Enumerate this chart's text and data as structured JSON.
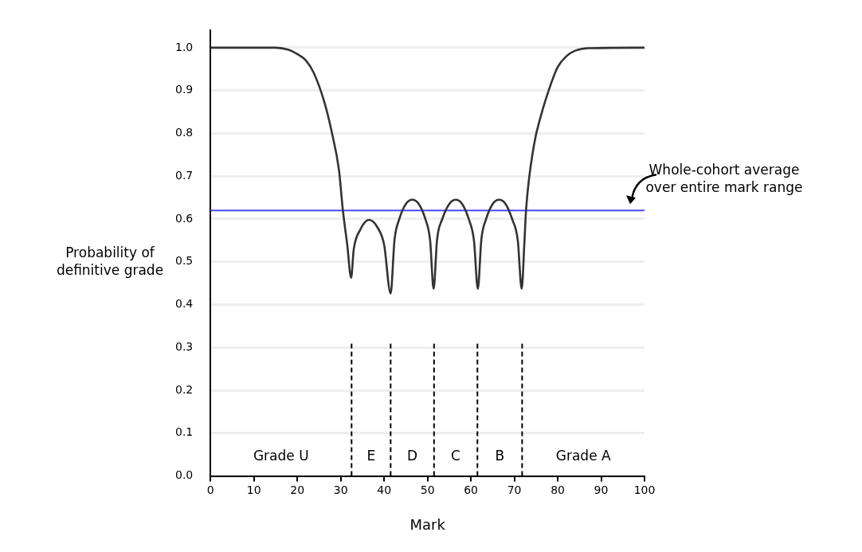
{
  "chart_data": {
    "type": "line",
    "xlabel": "Mark",
    "ylabel": "Probability of\ndefinitive grade",
    "xlim": [
      0,
      100
    ],
    "xticks": [
      0,
      10,
      20,
      30,
      40,
      50,
      60,
      70,
      80,
      90,
      100
    ],
    "ylim": [
      0,
      1.04
    ],
    "yticks": [
      {
        "value": 0,
        "label": "0.0"
      },
      {
        "value": 0.1,
        "label": "0.1"
      },
      {
        "value": 0.2,
        "label": "0.2"
      },
      {
        "value": 0.3,
        "label": "0.3"
      },
      {
        "value": 0.4,
        "label": "0.4"
      },
      {
        "value": 0.5,
        "label": "0.5"
      },
      {
        "value": 0.6,
        "label": "0.6"
      },
      {
        "value": 0.7,
        "label": "0.7"
      },
      {
        "value": 0.8,
        "label": "0.8"
      },
      {
        "value": 0.9,
        "label": "0.9"
      },
      {
        "value": 1,
        "label": "1.0"
      }
    ],
    "grid": "y",
    "legend": false,
    "marker": "none",
    "line_style": "solid",
    "series": [
      {
        "color": "#333333",
        "x": [
          0,
          10,
          15,
          18,
          20,
          22,
          23.7,
          26.2,
          28,
          29.6,
          30.5,
          31.5,
          32.4,
          33,
          34.5,
          36.5,
          38.5,
          40,
          41.5,
          42.4,
          43.5,
          45,
          46.5,
          48,
          49.5,
          50.6,
          51.4,
          52.2,
          53.4,
          55,
          56.5,
          58,
          59.5,
          60.7,
          61.6,
          62.4,
          63.5,
          65,
          66.5,
          68,
          69.5,
          70.8,
          71.7,
          72.3,
          72.7,
          74.5,
          76.1,
          78.6,
          80,
          82,
          84,
          87,
          100
        ],
        "values": [
          1,
          1,
          1,
          0.995,
          0.985,
          0.97,
          0.943,
          0.874,
          0.8,
          0.714,
          0.62,
          0.54,
          0.463,
          0.529,
          0.575,
          0.598,
          0.58,
          0.54,
          0.426,
          0.552,
          0.6,
          0.635,
          0.645,
          0.635,
          0.6,
          0.55,
          0.437,
          0.552,
          0.6,
          0.635,
          0.645,
          0.635,
          0.6,
          0.55,
          0.437,
          0.552,
          0.6,
          0.635,
          0.645,
          0.635,
          0.6,
          0.55,
          0.437,
          0.54,
          0.62,
          0.771,
          0.84,
          0.92,
          0.955,
          0.98,
          0.993,
          0.999,
          1
        ]
      }
    ],
    "ref_lines": [
      {
        "axis": "y",
        "value": 0.62,
        "label": "Whole-cohort average over entire mark range",
        "color": "#4a4aff",
        "line_style": "solid"
      },
      {
        "axis": "x",
        "value": 32.5,
        "color": "#000000",
        "line_style": "dashed"
      },
      {
        "axis": "x",
        "value": 41.5,
        "color": "#000000",
        "line_style": "dashed"
      },
      {
        "axis": "x",
        "value": 51.5,
        "color": "#000000",
        "line_style": "dashed"
      },
      {
        "axis": "x",
        "value": 61.5,
        "color": "#000000",
        "line_style": "dashed"
      },
      {
        "axis": "x",
        "value": 71.8,
        "color": "#000000",
        "line_style": "dashed"
      }
    ],
    "annotations": [
      "Grade U",
      "E",
      "D",
      "C",
      "B",
      "Grade A"
    ]
  }
}
